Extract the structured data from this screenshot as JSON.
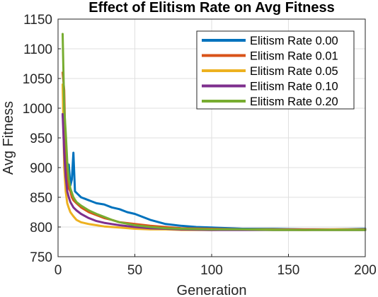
{
  "chart_data": {
    "type": "line",
    "title": "Effect of Elitism Rate on Avg Fitness",
    "xlabel": "Generation",
    "ylabel": "Avg Fitness",
    "xlim": [
      0,
      200
    ],
    "ylim": [
      750,
      1150
    ],
    "x_ticks": [
      0,
      50,
      100,
      150,
      200
    ],
    "y_ticks": [
      750,
      800,
      850,
      900,
      950,
      1000,
      1050,
      1100,
      1150
    ],
    "grid": true,
    "legend_position": "top-right",
    "series": [
      {
        "name": "Elitism Rate 0.00",
        "color": "#0072BD",
        "x": [
          3,
          4,
          5,
          6,
          7,
          8,
          9,
          10,
          11,
          13,
          15,
          20,
          25,
          30,
          35,
          40,
          45,
          50,
          60,
          70,
          80,
          90,
          100,
          120,
          140,
          160,
          180,
          200
        ],
        "y": [
          990,
          960,
          905,
          880,
          905,
          870,
          880,
          925,
          860,
          855,
          850,
          845,
          840,
          838,
          833,
          830,
          825,
          822,
          812,
          805,
          802,
          800,
          799,
          797,
          797,
          796,
          796,
          797
        ]
      },
      {
        "name": "Elitism Rate 0.01",
        "color": "#D95319",
        "x": [
          3,
          4,
          5,
          6,
          7,
          8,
          9,
          10,
          12,
          15,
          20,
          25,
          30,
          35,
          40,
          50,
          60,
          70,
          80,
          100,
          120,
          140,
          160,
          180,
          200
        ],
        "y": [
          1060,
          1030,
          915,
          880,
          865,
          860,
          850,
          845,
          840,
          833,
          825,
          820,
          815,
          812,
          808,
          805,
          802,
          800,
          798,
          797,
          796,
          796,
          796,
          796,
          796
        ]
      },
      {
        "name": "Elitism Rate 0.05",
        "color": "#EDB120",
        "x": [
          3,
          4,
          5,
          6,
          7,
          8,
          10,
          12,
          15,
          20,
          25,
          30,
          40,
          50,
          60,
          70,
          80,
          100,
          120,
          140,
          160,
          180,
          200
        ],
        "y": [
          1040,
          900,
          860,
          840,
          832,
          825,
          818,
          812,
          808,
          805,
          803,
          801,
          799,
          797,
          796,
          796,
          795,
          795,
          796,
          796,
          795,
          796,
          796
        ]
      },
      {
        "name": "Elitism Rate 0.10",
        "color": "#7E2F8E",
        "x": [
          3,
          4,
          5,
          6,
          7,
          8,
          10,
          12,
          15,
          20,
          25,
          30,
          35,
          40,
          50,
          60,
          70,
          80,
          100,
          120,
          140,
          160,
          180,
          200
        ],
        "y": [
          990,
          925,
          885,
          860,
          850,
          842,
          833,
          828,
          822,
          815,
          810,
          807,
          805,
          803,
          800,
          798,
          797,
          796,
          795,
          795,
          795,
          795,
          795,
          795
        ]
      },
      {
        "name": "Elitism Rate 0.20",
        "color": "#77AC30",
        "x": [
          3,
          4,
          5,
          6,
          7,
          8,
          10,
          12,
          15,
          20,
          25,
          30,
          35,
          40,
          50,
          60,
          70,
          80,
          100,
          120,
          140,
          160,
          180,
          200
        ],
        "y": [
          1125,
          1000,
          960,
          910,
          880,
          865,
          850,
          842,
          836,
          828,
          822,
          817,
          812,
          808,
          803,
          800,
          798,
          797,
          796,
          796,
          795,
          795,
          795,
          795
        ]
      }
    ]
  }
}
